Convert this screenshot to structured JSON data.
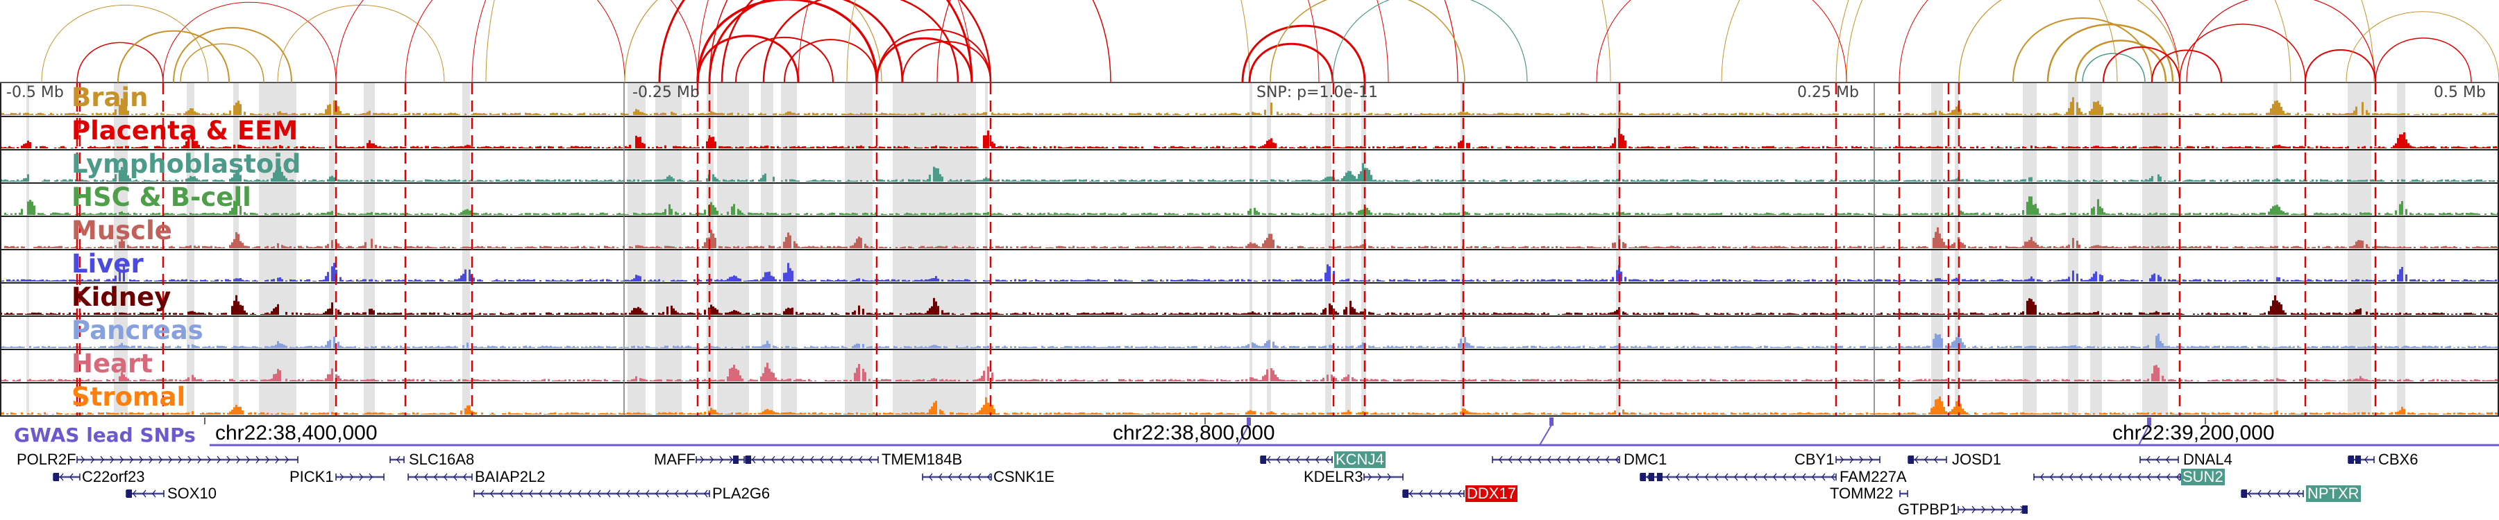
{
  "axis": {
    "labels": [
      "-0.5 Mb",
      "-0.25 Mb",
      "SNP: p=1.0e-11",
      "0.25 Mb",
      "0.5 Mb"
    ]
  },
  "tracks": [
    {
      "name": "Brain",
      "color": "#c8922a"
    },
    {
      "name": "Placenta & EEM",
      "color": "#e00000"
    },
    {
      "name": "Lymphoblastoid",
      "color": "#4c9a8a"
    },
    {
      "name": "HSC & B-cell",
      "color": "#4e9e4a"
    },
    {
      "name": "Muscle",
      "color": "#c0625a"
    },
    {
      "name": "Liver",
      "color": "#4a4ae0"
    },
    {
      "name": "Kidney",
      "color": "#6b0000"
    },
    {
      "name": "Pancreas",
      "color": "#86a0e0"
    },
    {
      "name": "Heart",
      "color": "#d66a7a"
    },
    {
      "name": "Stromal",
      "color": "#ff7f0e"
    }
  ],
  "coordinates": [
    "chr22:38,400,000",
    "chr22:38,800,000",
    "chr22:39,200,000"
  ],
  "gwas": {
    "label": "GWAS lead SNPs",
    "color": "#6a5acd"
  },
  "colors": {
    "gene": "#1a1a6e",
    "snp_line": "#e00000",
    "highlight_column": "#e3e3e3"
  },
  "genes": [
    {
      "name": "POLR2F",
      "strand": "+"
    },
    {
      "name": "C22orf23",
      "strand": "-"
    },
    {
      "name": "SOX10",
      "strand": "-"
    },
    {
      "name": "SLC16A8",
      "strand": "-"
    },
    {
      "name": "PICK1",
      "strand": "+"
    },
    {
      "name": "BAIAP2L2",
      "strand": "-"
    },
    {
      "name": "PLA2G6",
      "strand": "-"
    },
    {
      "name": "MAFF",
      "strand": "+"
    },
    {
      "name": "TMEM184B",
      "strand": "-"
    },
    {
      "name": "CSNK1E",
      "strand": "-"
    },
    {
      "name": "KCNJ4",
      "strand": "-",
      "highlight": "#4c9a8a"
    },
    {
      "name": "KDELR3",
      "strand": "+"
    },
    {
      "name": "DDX17",
      "strand": "-",
      "highlight": "#e00000"
    },
    {
      "name": "DMC1",
      "strand": "-"
    },
    {
      "name": "FAM227A",
      "strand": "-"
    },
    {
      "name": "CBY1",
      "strand": "+"
    },
    {
      "name": "TOMM22",
      "strand": "+"
    },
    {
      "name": "GTPBP1",
      "strand": "+"
    },
    {
      "name": "JOSD1",
      "strand": "-"
    },
    {
      "name": "DNAL4",
      "strand": "-"
    },
    {
      "name": "SUN2",
      "strand": "-",
      "highlight": "#4c9a8a"
    },
    {
      "name": "NPTXR",
      "strand": "-",
      "highlight": "#4c9a8a"
    },
    {
      "name": "CBX6",
      "strand": "-"
    }
  ]
}
